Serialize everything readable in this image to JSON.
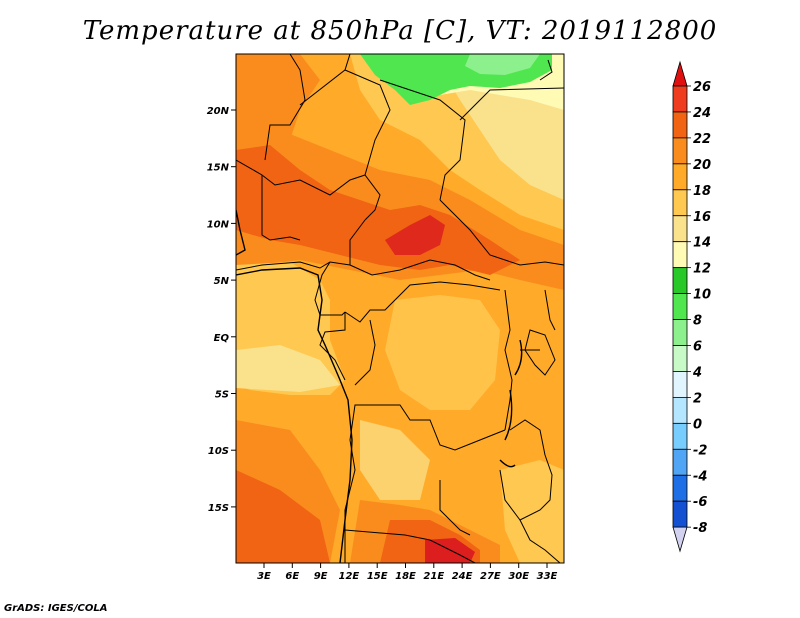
{
  "title": "Temperature at 850hPa [C], VT: 2019112800",
  "footer": "GrADS: IGES/COLA",
  "axes": {
    "lat_ticks": [
      "20N",
      "15N",
      "10N",
      "5N",
      "EQ",
      "5S",
      "10S",
      "15S"
    ],
    "lon_ticks": [
      "3E",
      "6E",
      "9E",
      "12E",
      "15E",
      "18E",
      "21E",
      "24E",
      "27E",
      "30E",
      "33E"
    ]
  },
  "colorbar": {
    "labels": [
      "26",
      "24",
      "22",
      "20",
      "18",
      "16",
      "14",
      "12",
      "10",
      "8",
      "6",
      "4",
      "2",
      "0",
      "-2",
      "-4",
      "-6",
      "-8"
    ],
    "colors": [
      "#dc1e1e",
      "#f03c1e",
      "#f06414",
      "#fa8c1e",
      "#ffaa28",
      "#ffc850",
      "#fae28c",
      "#fffab4",
      "#28c828",
      "#50e650",
      "#8cf08c",
      "#c8fac8",
      "#e1f5ff",
      "#b4e6ff",
      "#78cdff",
      "#50a5f5",
      "#1e6ee6",
      "#1450d2",
      "#0a32b4",
      "#000080"
    ],
    "top_arrow_color": "#e01010",
    "bottom_arrow_color": "#d2d2f0"
  },
  "palette": {
    "band_16_18": "#fae28c",
    "band_18_20": "#ffc850",
    "band_20_22": "#fa8c1e",
    "band_22_24": "#f06414",
    "band_24_26": "#dc1e1e",
    "band_14_16": "#fffab4",
    "band_12_14": "#28c828",
    "band_10_12": "#50e650",
    "band_8_10": "#8cf08c"
  }
}
